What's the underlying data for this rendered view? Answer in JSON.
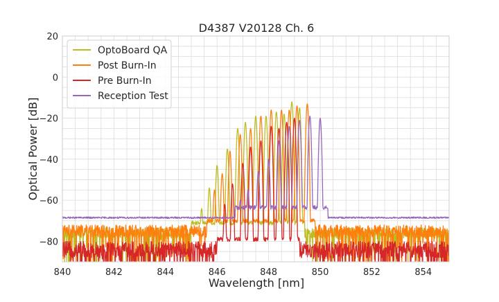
{
  "chart_data": {
    "type": "line",
    "title": "D4387 V20128 Ch. 6",
    "xlabel": "Wavelength [nm]",
    "ylabel": "Optical Power [dB]",
    "xlim": [
      840,
      855
    ],
    "ylim": [
      -90,
      20
    ],
    "x_ticks": [
      840,
      842,
      844,
      846,
      848,
      850,
      852,
      854
    ],
    "y_ticks": [
      20,
      0,
      -20,
      -40,
      -60,
      -80
    ],
    "x_tick_labels": [
      "840",
      "842",
      "844",
      "846",
      "848",
      "850",
      "852",
      "854"
    ],
    "y_tick_labels": [
      "20",
      "0",
      "−20",
      "−40",
      "−60",
      "−80"
    ],
    "grid": true,
    "legend_position": "top-left",
    "series": [
      {
        "name": "OptoBoard QA",
        "color": "#bcbd22",
        "floor": -76,
        "noise": 5,
        "peaks": [
          [
            845.4,
            -64
          ],
          [
            845.7,
            -54
          ],
          [
            846.0,
            -43
          ],
          [
            846.4,
            -35
          ],
          [
            846.8,
            -25
          ],
          [
            847.1,
            -22
          ],
          [
            847.5,
            -19
          ],
          [
            847.9,
            -19
          ],
          [
            848.3,
            -17
          ],
          [
            848.6,
            -18
          ],
          [
            848.9,
            -12
          ],
          [
            849.2,
            -15
          ]
        ],
        "band": [
          845.0,
          849.4
        ]
      },
      {
        "name": "Post Burn-In",
        "color": "#ff7f0e",
        "floor": -75,
        "noise": 6,
        "peaks": [
          [
            845.9,
            -55
          ],
          [
            846.2,
            -47
          ],
          [
            846.5,
            -36
          ],
          [
            846.9,
            -28
          ],
          [
            847.3,
            -25
          ],
          [
            847.7,
            -19
          ],
          [
            848.1,
            -16
          ],
          [
            848.5,
            -16
          ],
          [
            848.8,
            -16
          ],
          [
            849.1,
            -14
          ],
          [
            849.5,
            -13
          ]
        ],
        "band": [
          845.6,
          849.8
        ]
      },
      {
        "name": "Pre Burn-In",
        "color": "#d62728",
        "floor": -84,
        "noise": 8,
        "peaks": [
          [
            846.3,
            -62
          ],
          [
            846.6,
            -52
          ],
          [
            847.0,
            -42
          ],
          [
            847.3,
            -34
          ],
          [
            847.7,
            -31
          ],
          [
            848.1,
            -24
          ],
          [
            848.4,
            -25
          ],
          [
            848.7,
            -22
          ],
          [
            849.0,
            -20
          ]
        ],
        "band": [
          846.0,
          849.2
        ]
      },
      {
        "name": "Reception Test",
        "color": "#9467bd",
        "floor": -68.5,
        "noise": 0.8,
        "peaks": [
          [
            846.9,
            -60
          ],
          [
            847.2,
            -55
          ],
          [
            847.6,
            -46
          ],
          [
            848.0,
            -40
          ],
          [
            848.4,
            -31
          ],
          [
            848.8,
            -24
          ],
          [
            849.2,
            -21
          ],
          [
            849.6,
            -19
          ],
          [
            850.0,
            -20
          ]
        ],
        "band": [
          846.7,
          850.3
        ]
      }
    ]
  }
}
